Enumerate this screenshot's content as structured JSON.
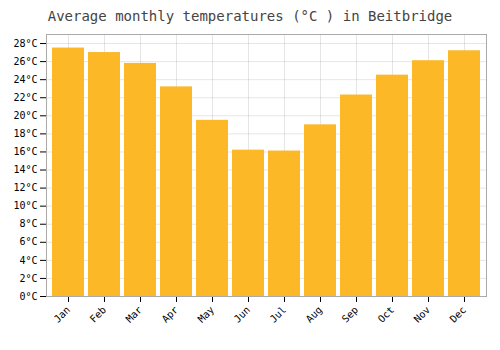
{
  "chart_data": {
    "type": "bar",
    "title": "Average monthly temperatures (°C ) in Beitbridge",
    "categories": [
      "Jan",
      "Feb",
      "Mar",
      "Apr",
      "May",
      "Jun",
      "Jul",
      "Aug",
      "Sep",
      "Oct",
      "Nov",
      "Dec"
    ],
    "values": [
      27.5,
      27.0,
      25.8,
      23.2,
      19.5,
      16.2,
      16.1,
      19.0,
      22.3,
      24.5,
      26.1,
      27.2
    ],
    "color": "#FDB827",
    "ylim": [
      0,
      29
    ],
    "yticks": [
      {
        "value": 0,
        "label": "0°C"
      },
      {
        "value": 2,
        "label": "2°C"
      },
      {
        "value": 4,
        "label": "4°C"
      },
      {
        "value": 6,
        "label": "6°C"
      },
      {
        "value": 8,
        "label": "8°C"
      },
      {
        "value": 10,
        "label": "10°C"
      },
      {
        "value": 12,
        "label": "12°C"
      },
      {
        "value": 14,
        "label": "14°C"
      },
      {
        "value": 16,
        "label": "16°C"
      },
      {
        "value": 18,
        "label": "18°C"
      },
      {
        "value": 20,
        "label": "20°C"
      },
      {
        "value": 22,
        "label": "22°C"
      },
      {
        "value": 24,
        "label": "24°C"
      },
      {
        "value": 26,
        "label": "26°C"
      },
      {
        "value": 28,
        "label": "28°C"
      }
    ],
    "grid": true
  }
}
